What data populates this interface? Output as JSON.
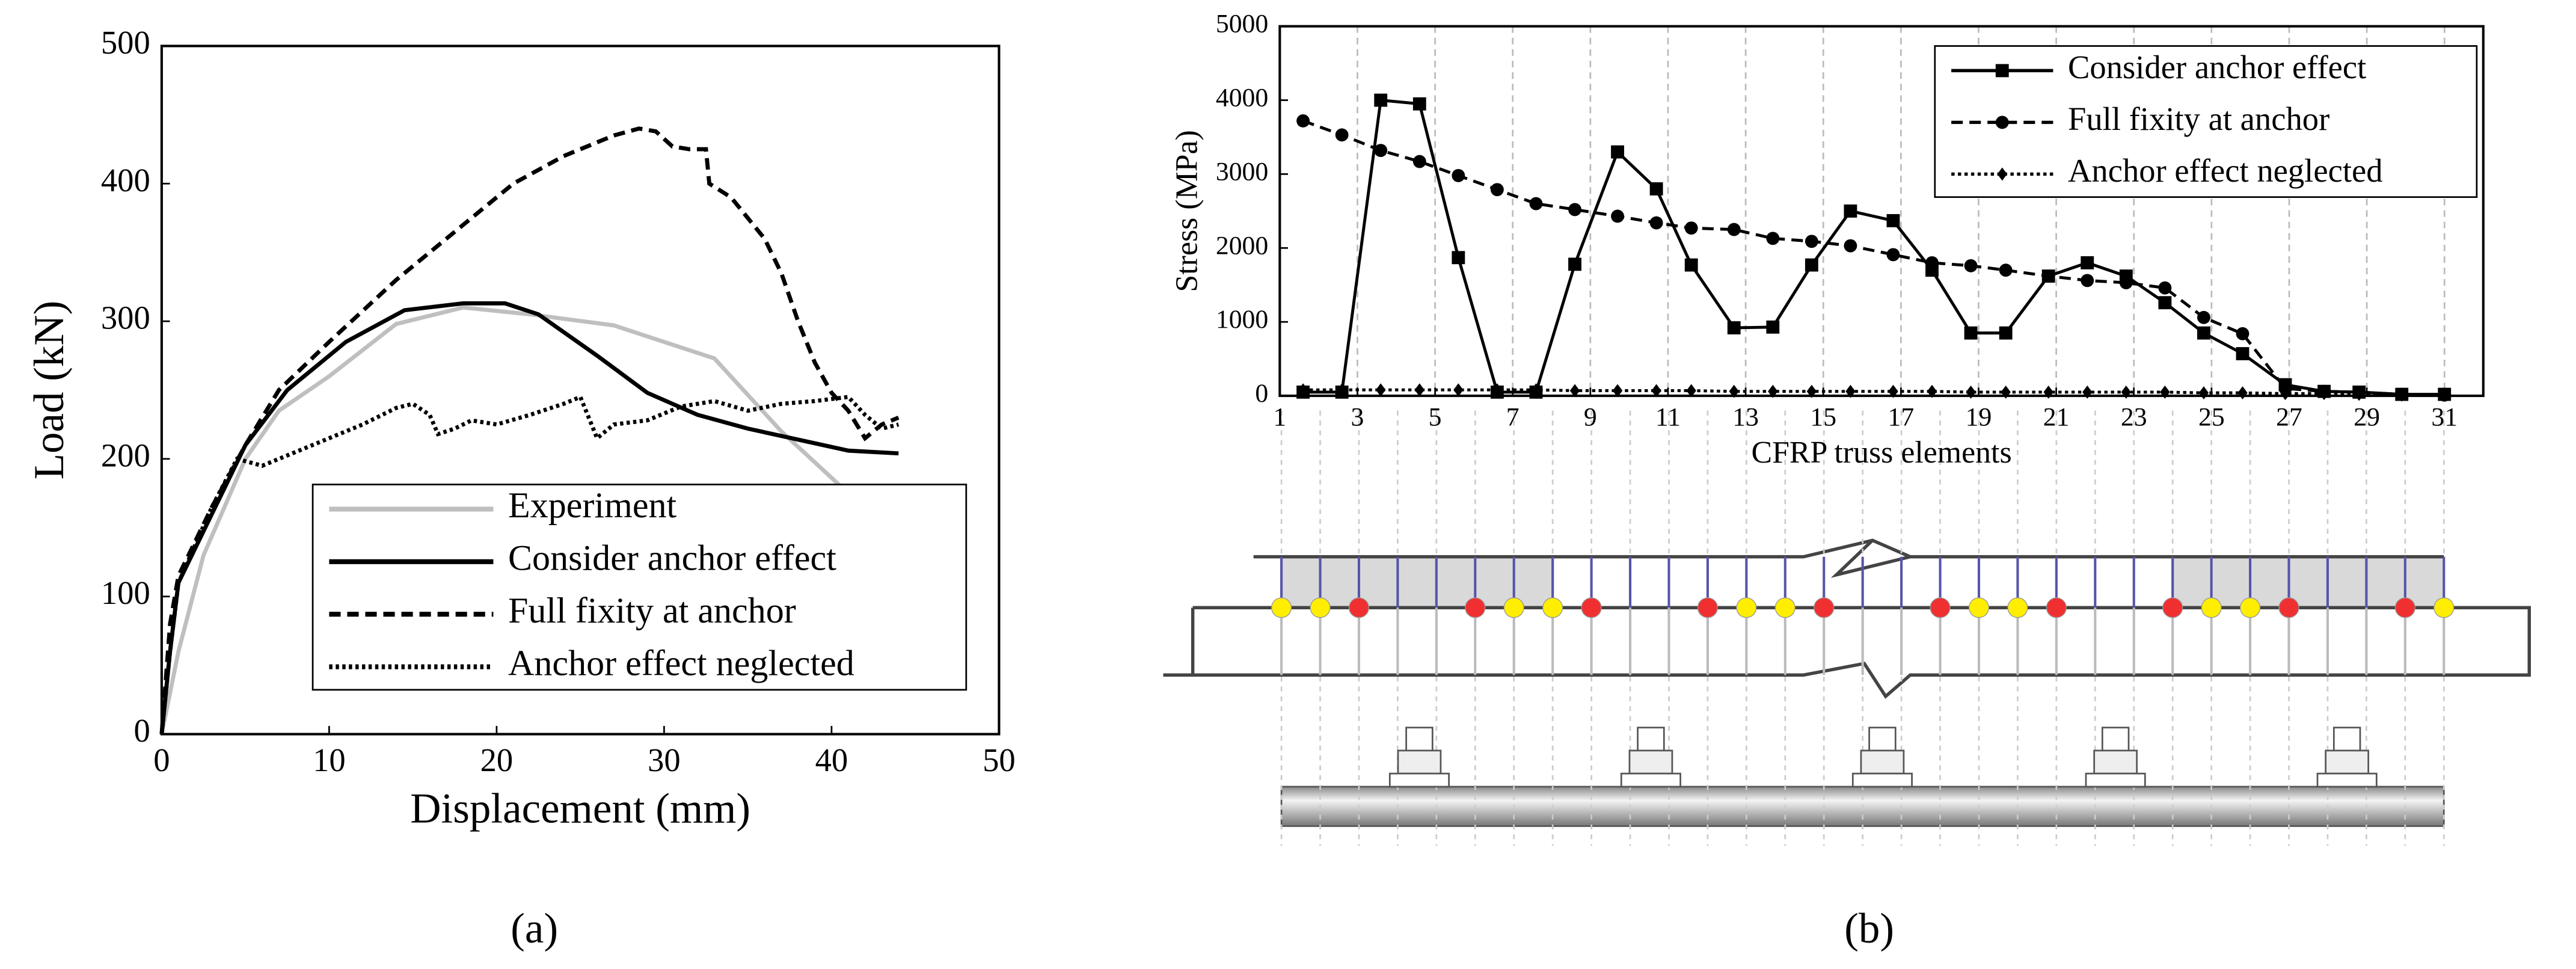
{
  "chart_data": [
    {
      "type": "line",
      "caption": "(a)",
      "x_label": "Displacement (mm)",
      "y_label": "Load (kN)",
      "xlim": [
        0,
        50
      ],
      "xticks": [
        0,
        10,
        20,
        30,
        40,
        50
      ],
      "ylim": [
        0,
        500
      ],
      "yticks": [
        0,
        100,
        200,
        300,
        400,
        500
      ],
      "legend": "lower right",
      "series": [
        {
          "name": "Experiment",
          "color": "#bfbfbf",
          "linestyle": "solid",
          "x": [
            0,
            1,
            2.5,
            5,
            7,
            10,
            14,
            18,
            22,
            27,
            33,
            37,
            41
          ],
          "values": [
            0,
            60,
            130,
            200,
            235,
            260,
            298,
            310,
            305,
            297,
            273,
            220,
            175
          ]
        },
        {
          "name": "Consider anchor effect",
          "color": "#000000",
          "linestyle": "solid",
          "x": [
            0,
            0.5,
            1,
            3,
            5,
            7.5,
            11,
            14.5,
            18,
            20.5,
            22.5,
            26,
            29,
            32,
            35,
            38,
            41,
            44
          ],
          "values": [
            0,
            60,
            110,
            160,
            210,
            250,
            285,
            308,
            313,
            313,
            305,
            275,
            248,
            232,
            222,
            214,
            206,
            204
          ]
        },
        {
          "name": "Full fixity at anchor",
          "color": "#000000",
          "linestyle": "dashed",
          "x": [
            0,
            0.5,
            1,
            3,
            5,
            7,
            10,
            14,
            18,
            21,
            24,
            27,
            28.5,
            29.5,
            30.5,
            31.5,
            32.5,
            32.7,
            34,
            36,
            37,
            38,
            39,
            40,
            41,
            42,
            43,
            44
          ],
          "values": [
            0,
            80,
            115,
            165,
            210,
            250,
            285,
            330,
            370,
            400,
            420,
            435,
            440,
            438,
            427,
            425,
            425,
            400,
            390,
            360,
            335,
            300,
            270,
            248,
            235,
            215,
            225,
            230
          ]
        },
        {
          "name": "Anchor effect neglected",
          "color": "#000000",
          "linestyle": "dotted",
          "x": [
            0,
            0.5,
            1,
            3,
            4.5,
            6,
            8,
            10,
            12,
            14,
            15,
            16,
            16.5,
            17.5,
            18.5,
            20,
            22,
            24,
            25,
            25.5,
            26,
            27,
            29,
            31,
            33,
            35,
            37,
            39,
            41,
            42,
            43,
            44
          ],
          "values": [
            0,
            60,
            110,
            165,
            200,
            195,
            205,
            215,
            225,
            237,
            240,
            232,
            218,
            222,
            228,
            225,
            232,
            240,
            245,
            230,
            215,
            225,
            228,
            238,
            242,
            235,
            240,
            242,
            245,
            232,
            222,
            225
          ]
        }
      ]
    },
    {
      "type": "line",
      "caption": "(b)",
      "x_label": "CFRP truss elements",
      "y_label": "Stress (MPa)",
      "xlim": [
        1,
        32
      ],
      "xticks": [
        1,
        3,
        5,
        7,
        9,
        11,
        13,
        15,
        17,
        19,
        21,
        23,
        25,
        27,
        29,
        31
      ],
      "ylim": [
        0,
        5000
      ],
      "yticks": [
        0,
        1000,
        2000,
        3000,
        4000,
        5000
      ],
      "grid": true,
      "legend": "upper right",
      "x": [
        1.6,
        2.6,
        3.6,
        4.6,
        5.6,
        6.6,
        7.6,
        8.6,
        9.7,
        10.7,
        11.6,
        12.7,
        13.7,
        14.7,
        15.7,
        16.8,
        17.8,
        18.8,
        19.7,
        20.8,
        21.8,
        22.8,
        23.8,
        24.8,
        25.8,
        26.9,
        27.9,
        28.8,
        29.9,
        31
      ],
      "series": [
        {
          "name": "Consider anchor effect",
          "color": "#000000",
          "linestyle": "solid",
          "marker": "square",
          "values": [
            50,
            50,
            4000,
            3950,
            1870,
            50,
            50,
            1780,
            3300,
            2800,
            1770,
            920,
            930,
            1770,
            2500,
            2370,
            1700,
            850,
            850,
            1620,
            1800,
            1620,
            1260,
            850,
            570,
            150,
            60,
            50,
            20,
            20
          ]
        },
        {
          "name": "Full fixity at anchor",
          "color": "#000000",
          "linestyle": "dashed",
          "marker": "circle",
          "values": [
            3720,
            3530,
            3320,
            3170,
            2980,
            2790,
            2600,
            2520,
            2430,
            2340,
            2270,
            2250,
            2130,
            2090,
            2030,
            1910,
            1800,
            1760,
            1700,
            1620,
            1560,
            1530,
            1460,
            1060,
            840,
            100,
            60,
            50,
            20,
            10
          ]
        },
        {
          "name": "Anchor effect neglected",
          "color": "#000000",
          "linestyle": "dotted",
          "marker": "diamond",
          "values": [
            80,
            80,
            80,
            80,
            80,
            80,
            80,
            70,
            70,
            70,
            70,
            60,
            60,
            60,
            60,
            60,
            60,
            50,
            50,
            50,
            50,
            50,
            50,
            40,
            40,
            30,
            30,
            20,
            10,
            10
          ]
        }
      ]
    }
  ]
}
